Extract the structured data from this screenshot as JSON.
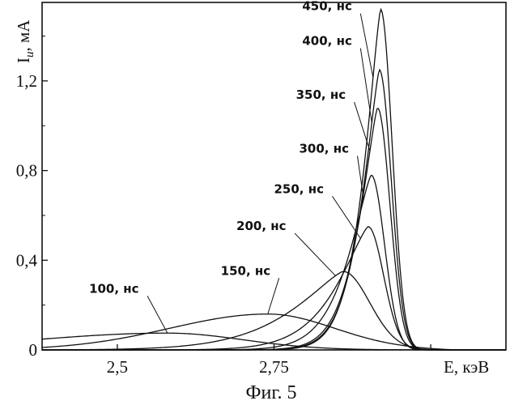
{
  "chart_data": {
    "type": "line",
    "caption": "Фиг. 5",
    "xlabel": "E, кэВ",
    "ylabel": "I",
    "ylabel_sub": "и",
    "ylabel_unit": ", мА",
    "xlim": [
      2.38,
      3.12
    ],
    "ylim": [
      0,
      1.55
    ],
    "xticks": [
      2.5,
      2.75,
      3.0
    ],
    "xtick_labels": [
      "2,5",
      "2,75",
      ""
    ],
    "yticks": [
      0,
      0.4,
      0.8,
      1.2
    ],
    "ytick_labels": [
      "0",
      "0,4",
      "0,8",
      "1,2"
    ],
    "grid": false,
    "series": [
      {
        "name": "100, нс",
        "peak_x": 2.58,
        "peak_y": 0.075,
        "sl": 0.3,
        "sr": 0.17,
        "p": 2.0,
        "tau": 0.06,
        "x_end": 3.04,
        "label_x": 2.455,
        "label_y": 0.255
      },
      {
        "name": "150, нс",
        "peak_x": 2.74,
        "peak_y": 0.16,
        "sl": 0.22,
        "sr": 0.15,
        "p": 2.0,
        "tau": 0.05,
        "x_end": 3.04,
        "label_x": 2.665,
        "label_y": 0.335
      },
      {
        "name": "200, нс",
        "peak_x": 2.86,
        "peak_y": 0.35,
        "sl": 0.11,
        "sr": 0.06,
        "p": 1.3,
        "tau": 0.035,
        "x_end": 3.04,
        "label_x": 2.69,
        "label_y": 0.535
      },
      {
        "name": "250, нс",
        "peak_x": 2.9,
        "peak_y": 0.55,
        "sl": 0.07,
        "sr": 0.035,
        "p": 1.3,
        "tau": 0.03,
        "x_end": 3.04,
        "label_x": 2.75,
        "label_y": 0.7
      },
      {
        "name": "300, нс",
        "peak_x": 2.905,
        "peak_y": 0.78,
        "sl": 0.052,
        "sr": 0.03,
        "p": 1.3,
        "tau": 0.028,
        "x_end": 3.04,
        "label_x": 2.79,
        "label_y": 0.88
      },
      {
        "name": "350, нс",
        "peak_x": 2.915,
        "peak_y": 1.08,
        "sl": 0.042,
        "sr": 0.028,
        "p": 1.3,
        "tau": 0.027,
        "x_end": 3.04,
        "label_x": 2.785,
        "label_y": 1.12
      },
      {
        "name": "400, нс",
        "peak_x": 2.918,
        "peak_y": 1.25,
        "sl": 0.04,
        "sr": 0.027,
        "p": 1.3,
        "tau": 0.026,
        "x_end": 3.04,
        "label_x": 2.795,
        "label_y": 1.36
      },
      {
        "name": "450, нс",
        "peak_x": 2.92,
        "peak_y": 1.52,
        "sl": 0.038,
        "sr": 0.026,
        "p": 1.3,
        "tau": 0.025,
        "x_end": 3.04,
        "label_x": 2.795,
        "label_y": 1.515
      }
    ]
  }
}
